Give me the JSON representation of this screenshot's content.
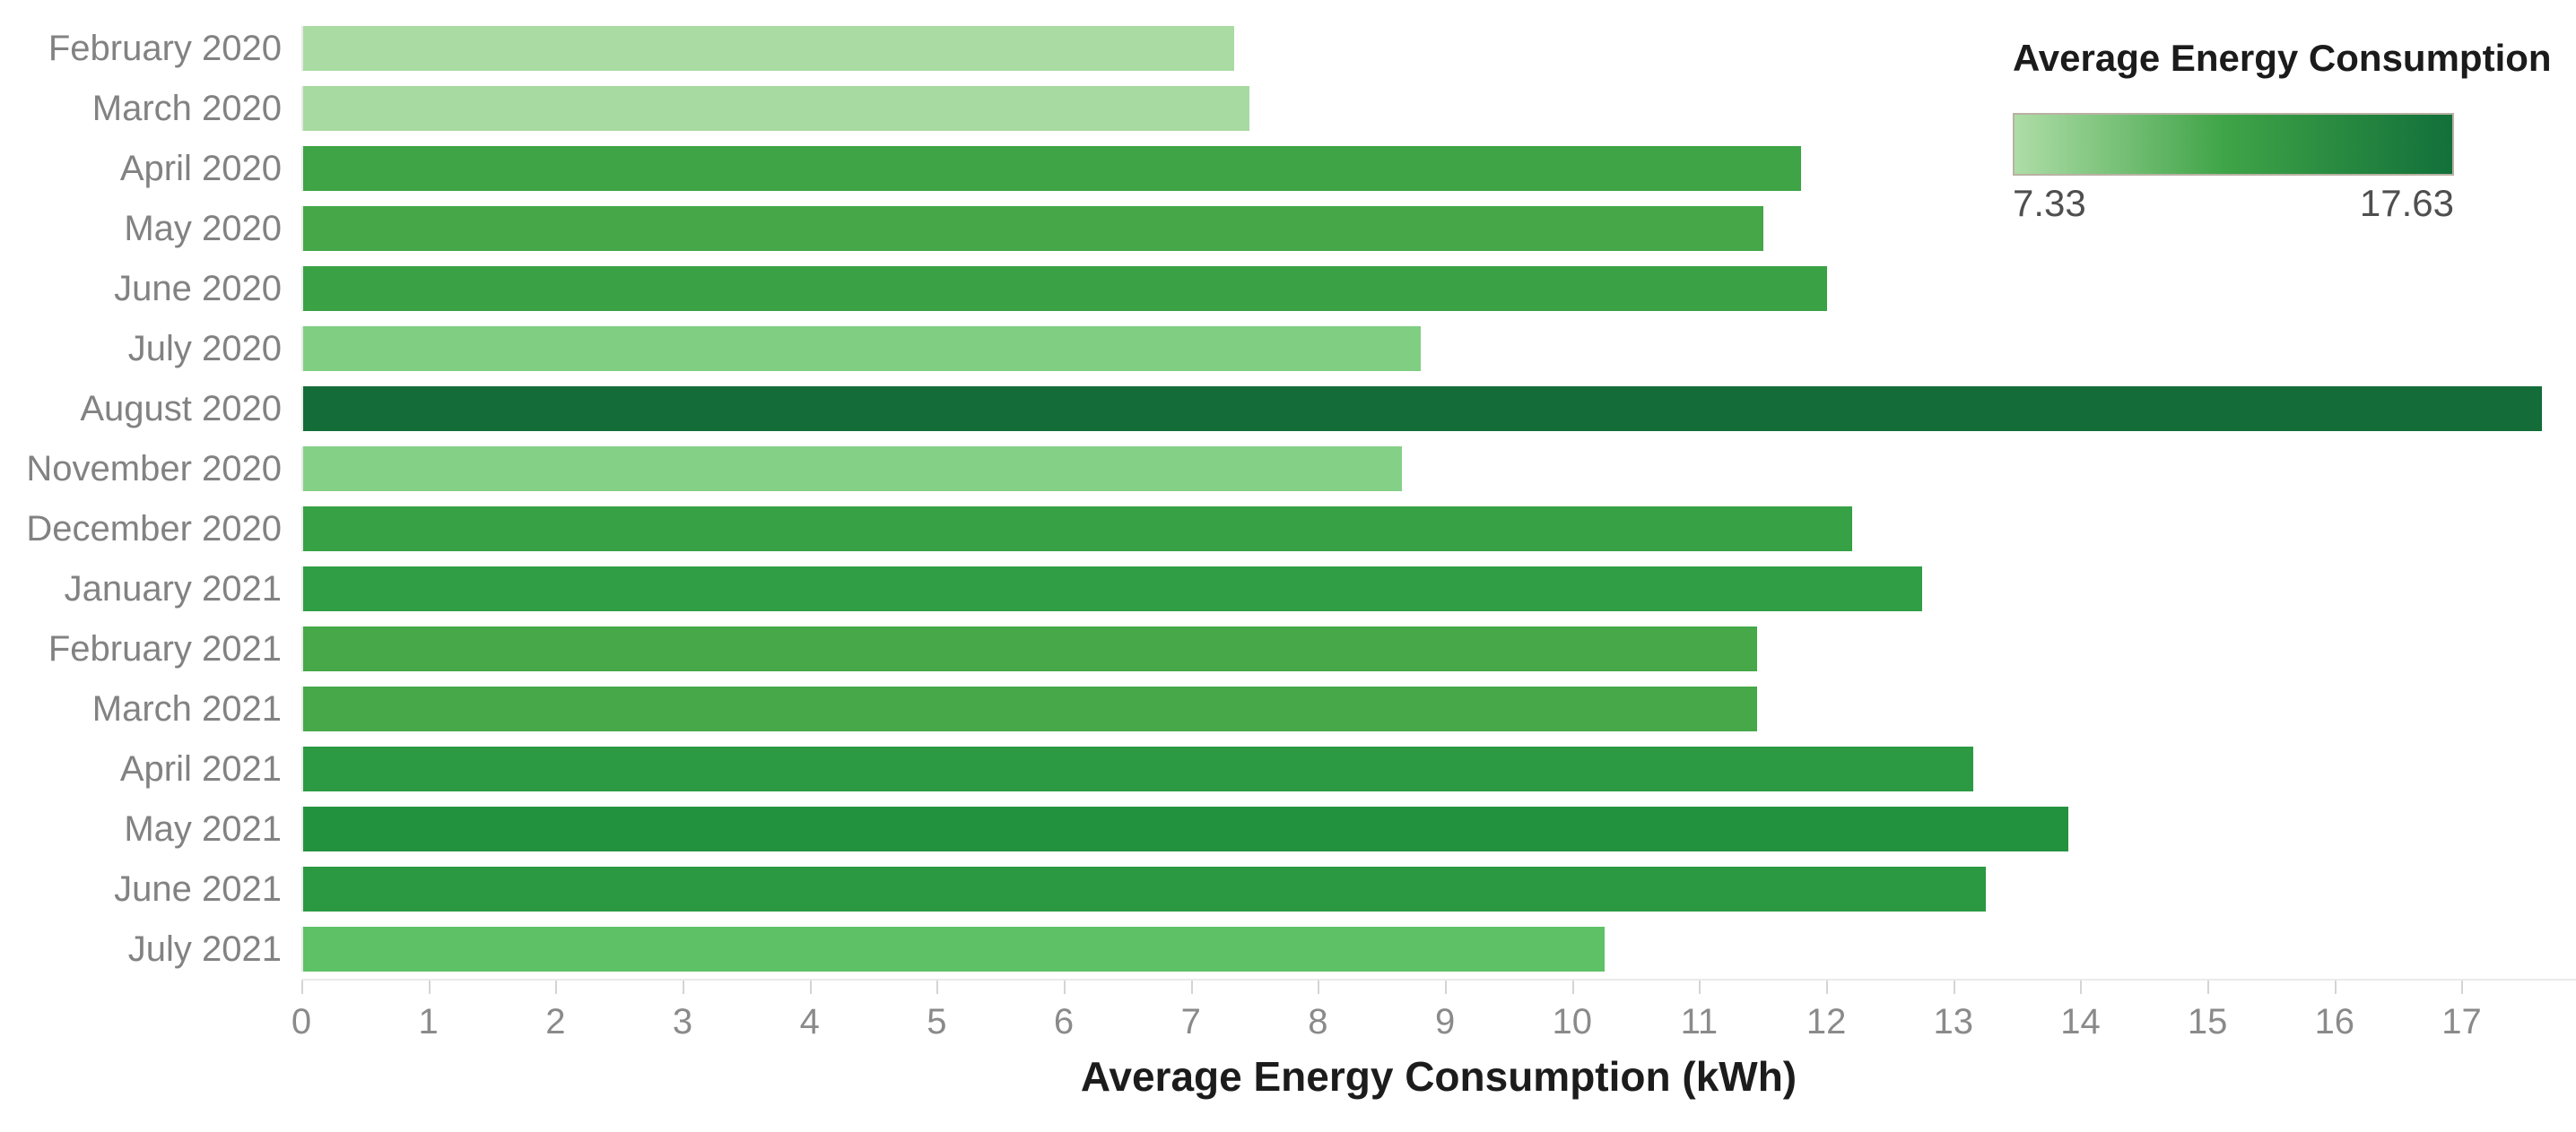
{
  "chart_data": {
    "type": "bar",
    "orientation": "horizontal",
    "title": "",
    "xlabel": "Average Energy Consumption (kWh)",
    "x_axis": {
      "min": 0,
      "display_max": 17.9,
      "tick_step": 1,
      "tick_labels": [
        "0",
        "1",
        "2",
        "3",
        "4",
        "5",
        "6",
        "7",
        "8",
        "9",
        "10",
        "11",
        "12",
        "13",
        "14",
        "15",
        "16",
        "17"
      ]
    },
    "legend": {
      "title": "Average Energy Consumption",
      "min_label": "7.33",
      "max_label": "17.63",
      "gradient_colors": [
        "#aedda7",
        "#3fa447",
        "#12703a"
      ]
    },
    "categories": [
      "February 2020",
      "March 2020",
      "April 2020",
      "May 2020",
      "June 2020",
      "July 2020",
      "August 2020",
      "November 2020",
      "December 2020",
      "January 2021",
      "February 2021",
      "March 2021",
      "April 2021",
      "May 2021",
      "June 2021",
      "July 2021"
    ],
    "values": [
      7.33,
      7.45,
      11.8,
      11.5,
      12.0,
      8.8,
      17.63,
      8.65,
      12.2,
      12.75,
      11.45,
      11.45,
      13.15,
      13.9,
      13.25,
      10.25
    ],
    "bar_colors": [
      "#a9dba3",
      "#a6daa0",
      "#3ea446",
      "#45a748",
      "#3aa245",
      "#80ce82",
      "#146c39",
      "#85d087",
      "#36a145",
      "#309e44",
      "#46a848",
      "#46a848",
      "#2b9a43",
      "#23923f",
      "#2a9942",
      "#5ec165"
    ]
  }
}
